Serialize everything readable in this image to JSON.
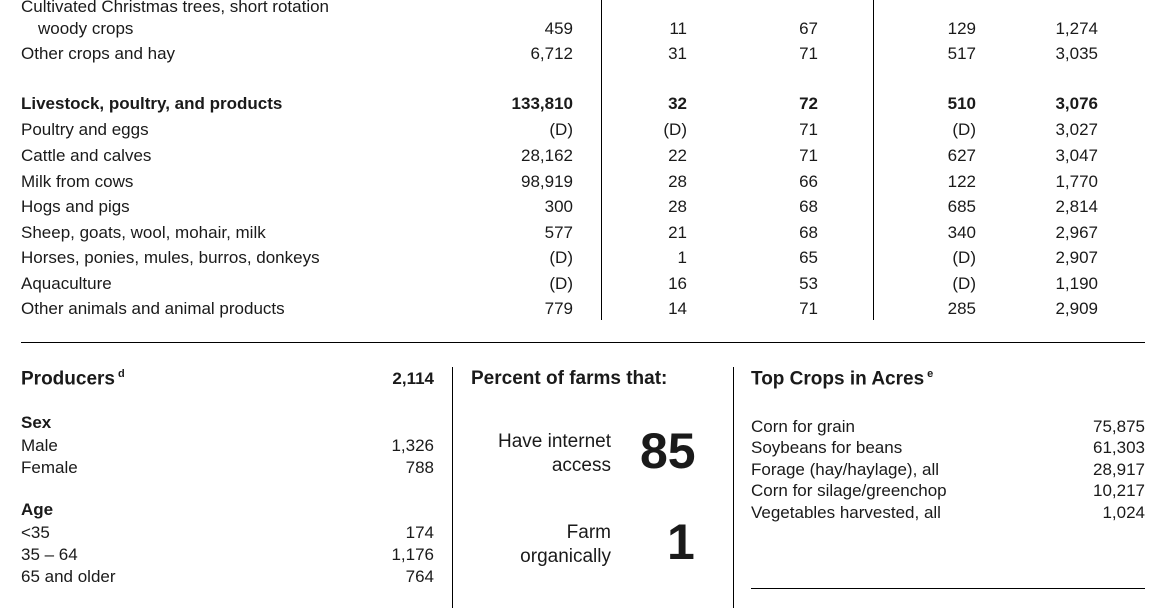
{
  "sales_table": {
    "rows": [
      {
        "label": "Cultivated Christmas trees, short rotation",
        "label2": "woody crops",
        "values": [
          "459",
          "11",
          "67",
          "129",
          "1,274"
        ]
      },
      {
        "label": "Other crops and hay",
        "values": [
          "6,712",
          "31",
          "71",
          "517",
          "3,035"
        ]
      },
      {
        "label": "Livestock, poultry, and products",
        "bold": true,
        "values": [
          "133,810",
          "32",
          "72",
          "510",
          "3,076"
        ]
      },
      {
        "label": "Poultry and eggs",
        "values": [
          "(D)",
          "(D)",
          "71",
          "(D)",
          "3,027"
        ]
      },
      {
        "label": "Cattle and calves",
        "values": [
          "28,162",
          "22",
          "71",
          "627",
          "3,047"
        ]
      },
      {
        "label": "Milk from cows",
        "values": [
          "98,919",
          "28",
          "66",
          "122",
          "1,770"
        ]
      },
      {
        "label": "Hogs and pigs",
        "values": [
          "300",
          "28",
          "68",
          "685",
          "2,814"
        ]
      },
      {
        "label": "Sheep, goats, wool, mohair, milk",
        "values": [
          "577",
          "21",
          "68",
          "340",
          "2,967"
        ]
      },
      {
        "label": "Horses, ponies, mules, burros, donkeys",
        "values": [
          "(D)",
          "1",
          "65",
          "(D)",
          "2,907"
        ]
      },
      {
        "label": "Aquaculture",
        "values": [
          "(D)",
          "16",
          "53",
          "(D)",
          "1,190"
        ]
      },
      {
        "label": "Other animals and animal products",
        "values": [
          "779",
          "14",
          "71",
          "285",
          "2,909"
        ]
      }
    ]
  },
  "producers": {
    "title": "Producers",
    "footnote": "d",
    "total": "2,114",
    "sex_heading": "Sex",
    "sex": [
      {
        "label": "Male",
        "value": "1,326"
      },
      {
        "label": "Female",
        "value": "788"
      }
    ],
    "age_heading": "Age",
    "age": [
      {
        "label": "<35",
        "value": "174"
      },
      {
        "label": "35 – 64",
        "value": "1,176"
      },
      {
        "label": "65 and older",
        "value": "764"
      }
    ]
  },
  "percent_farms": {
    "title": "Percent of farms that:",
    "items": [
      {
        "line1": "Have internet",
        "line2": "access",
        "value": "85"
      },
      {
        "line1": "Farm",
        "line2": "organically",
        "value": "1"
      }
    ]
  },
  "top_crops": {
    "title": "Top Crops in Acres",
    "footnote": "e",
    "items": [
      {
        "label": "Corn for grain",
        "value": "75,875"
      },
      {
        "label": "Soybeans for beans",
        "value": "61,303"
      },
      {
        "label": "Forage (hay/haylage), all",
        "value": "28,917"
      },
      {
        "label": "Corn for silage/greenchop",
        "value": "10,217"
      },
      {
        "label": "Vegetables harvested, all",
        "value": "1,024"
      }
    ]
  }
}
